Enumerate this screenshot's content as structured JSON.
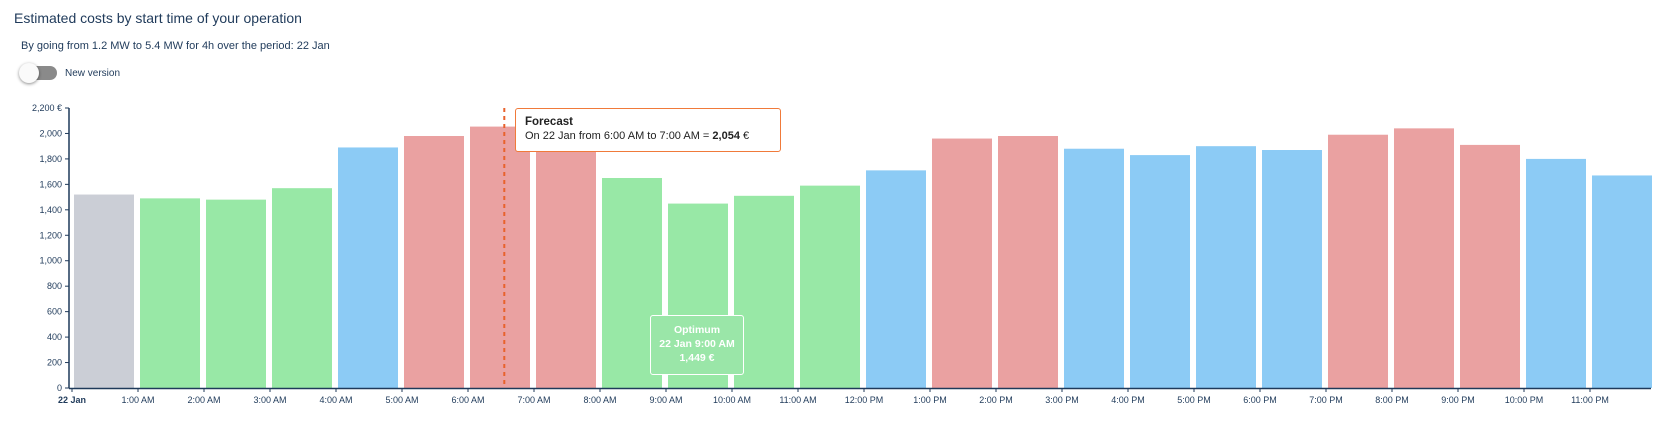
{
  "header": {
    "title": "Estimated costs by start time of your operation",
    "subtitle": "By going from 1.2 MW to 5.4 MW for 4h over the period: 22 Jan"
  },
  "toggle": {
    "label": "New version",
    "on": false
  },
  "colors": {
    "gray": "#cbced6",
    "green": "#98e8a6",
    "blue": "#8ccbf5",
    "red": "#eaa1a1",
    "axis": "#1f3a5a",
    "now_line": "#e8622c",
    "tooltip_border": "#f07a3a"
  },
  "chart_data": {
    "type": "bar",
    "categories": [
      "22 Jan",
      "1:00 AM",
      "2:00 AM",
      "3:00 AM",
      "4:00 AM",
      "5:00 AM",
      "6:00 AM",
      "7:00 AM",
      "8:00 AM",
      "9:00 AM",
      "10:00 AM",
      "11:00 AM",
      "12:00 PM",
      "1:00 PM",
      "2:00 PM",
      "3:00 PM",
      "4:00 PM",
      "5:00 PM",
      "6:00 PM",
      "7:00 PM",
      "8:00 PM",
      "9:00 PM",
      "10:00 PM",
      "11:00 PM"
    ],
    "values": [
      1520,
      1490,
      1480,
      1570,
      1890,
      1980,
      2054,
      1980,
      1650,
      1449,
      1510,
      1590,
      1710,
      1960,
      1980,
      1880,
      1830,
      1900,
      1870,
      1990,
      2040,
      1910,
      1800,
      1670
    ],
    "bar_colors": [
      "gray",
      "green",
      "green",
      "green",
      "blue",
      "red",
      "red",
      "red",
      "green",
      "green",
      "green",
      "green",
      "blue",
      "red",
      "red",
      "blue",
      "blue",
      "blue",
      "blue",
      "red",
      "red",
      "red",
      "blue",
      "blue"
    ],
    "ylim": [
      0,
      2200
    ],
    "y_ticks": [
      {
        "value": 0,
        "label": "0"
      },
      {
        "value": 200,
        "label": "200"
      },
      {
        "value": 400,
        "label": "400"
      },
      {
        "value": 600,
        "label": "600"
      },
      {
        "value": 800,
        "label": "800"
      },
      {
        "value": 1000,
        "label": "1,000"
      },
      {
        "value": 1200,
        "label": "1,200"
      },
      {
        "value": 1400,
        "label": "1,400"
      },
      {
        "value": 1600,
        "label": "1,600"
      },
      {
        "value": 1800,
        "label": "1,800"
      },
      {
        "value": 2000,
        "label": "2,000"
      },
      {
        "value": 2200,
        "label": "2,200 €"
      }
    ],
    "now_marker_hour": 6.55,
    "grid": false,
    "legend": "none"
  },
  "tooltips": {
    "forecast": {
      "title": "Forecast",
      "text": "On 22 Jan from 6:00 AM to 7:00 AM = ",
      "value": "2,054",
      "unit": " €"
    },
    "optimum": {
      "title": "Optimum",
      "date": "22 Jan 9:00 AM",
      "value": "1,449 €"
    }
  }
}
